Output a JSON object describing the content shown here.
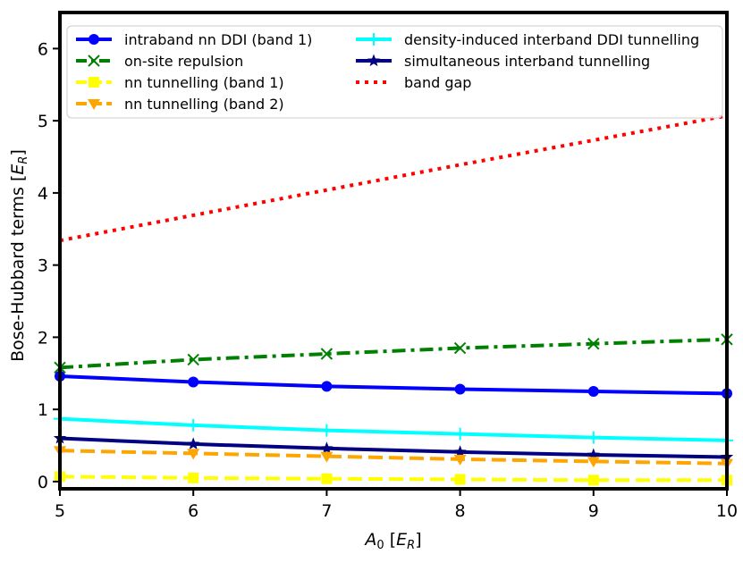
{
  "chart_data": {
    "type": "line",
    "title": "",
    "x": [
      5,
      6,
      7,
      8,
      9,
      10
    ],
    "xlim": [
      5,
      10
    ],
    "ylim": [
      -0.1,
      6.5
    ],
    "xticks": [
      5,
      6,
      7,
      8,
      9,
      10
    ],
    "yticks": [
      0,
      1,
      2,
      3,
      4,
      5,
      6
    ],
    "xlabel": {
      "main": "A",
      "sub": "0",
      "bracket_open": " [",
      "unit_main": "E",
      "unit_sub": "R",
      "bracket_close": "]"
    },
    "ylabel": {
      "main": "Bose-Hubbard terms [",
      "unit_main": "E",
      "unit_sub": "R",
      "bracket_close": "]"
    },
    "series": [
      {
        "name": "intraband nn DDI (band 1)",
        "color": "#0000ff",
        "dash": "solid",
        "marker": "circle",
        "values": [
          1.46,
          1.38,
          1.32,
          1.28,
          1.25,
          1.22
        ]
      },
      {
        "name": "on-site repulsion",
        "color": "#008000",
        "dash": "dashdot",
        "marker": "x",
        "values": [
          1.58,
          1.69,
          1.77,
          1.85,
          1.91,
          1.97
        ]
      },
      {
        "name": "nn tunnelling (band 1)",
        "color": "#ffff00",
        "dash": "dashed",
        "marker": "square",
        "values": [
          0.07,
          0.05,
          0.04,
          0.03,
          0.02,
          0.02
        ]
      },
      {
        "name": "nn tunnelling (band 2)",
        "color": "#ffa500",
        "dash": "dashed",
        "marker": "triangle-down",
        "values": [
          0.43,
          0.39,
          0.35,
          0.31,
          0.28,
          0.25
        ]
      },
      {
        "name": "density-induced interband DDI tunnelling",
        "color": "#00ffff",
        "dash": "solid",
        "marker": "plus",
        "values": [
          0.87,
          0.78,
          0.71,
          0.66,
          0.61,
          0.57
        ]
      },
      {
        "name": "simultaneous interband tunnelling",
        "color": "#000080",
        "dash": "solid",
        "marker": "star",
        "values": [
          0.6,
          0.52,
          0.46,
          0.41,
          0.37,
          0.34
        ]
      },
      {
        "name": "band gap",
        "color": "#ff0000",
        "dash": "dotted",
        "marker": "none",
        "values": [
          3.34,
          3.69,
          4.04,
          4.39,
          4.73,
          5.07
        ]
      }
    ],
    "legend": {
      "position": "top-left",
      "columns": 2
    }
  }
}
